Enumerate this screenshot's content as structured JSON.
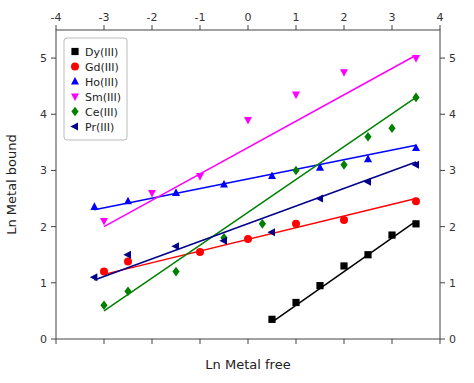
{
  "chart_data": {
    "type": "scatter",
    "x_label": "Ln Metal free",
    "y_label": "Ln Metal bound",
    "xlim": [
      -4,
      4
    ],
    "ylim": [
      0,
      5.5
    ],
    "xticks": [
      -4,
      -3,
      -2,
      -1,
      0,
      1,
      2,
      3,
      4
    ],
    "yticks": [
      0,
      1,
      2,
      3,
      4,
      5
    ],
    "y2lim": [
      0,
      5.5
    ],
    "y2ticks": [
      0,
      1,
      2,
      3,
      4,
      5
    ],
    "legend": "upper left",
    "grid": false,
    "series": [
      {
        "name": "Dy(III)",
        "color": "black",
        "marker": "square",
        "x": [
          0.5,
          1.0,
          1.5,
          2.0,
          2.5,
          3.0,
          3.5
        ],
        "values": [
          0.35,
          0.65,
          0.95,
          1.3,
          1.5,
          1.85,
          2.05
        ],
        "line_x": [
          0.5,
          3.5
        ],
        "line_y": [
          0.3,
          2.1
        ]
      },
      {
        "name": "Gd(III)",
        "color": "red",
        "marker": "circle",
        "x": [
          -3.0,
          -2.5,
          -1.0,
          0.0,
          1.0,
          2.0,
          3.5
        ],
        "values": [
          1.2,
          1.38,
          1.55,
          1.78,
          2.05,
          2.12,
          2.45
        ],
        "line_x": [
          -3.0,
          3.5
        ],
        "line_y": [
          1.15,
          2.5
        ]
      },
      {
        "name": "Ho(III)",
        "color": "blue",
        "marker": "triangle-up",
        "x": [
          -3.2,
          -2.5,
          -1.5,
          -0.5,
          0.5,
          1.5,
          2.5,
          3.5
        ],
        "values": [
          2.35,
          2.45,
          2.6,
          2.75,
          2.9,
          3.05,
          3.2,
          3.4
        ],
        "line_x": [
          -3.2,
          3.5
        ],
        "line_y": [
          2.3,
          3.45
        ]
      },
      {
        "name": "Sm(III)",
        "color": "magenta",
        "marker": "triangle-down",
        "x": [
          -3.0,
          -2.0,
          -1.0,
          0.0,
          1.0,
          2.0,
          3.5
        ],
        "values": [
          2.1,
          2.6,
          2.9,
          3.9,
          4.35,
          4.75,
          5.0
        ],
        "line_x": [
          -3.0,
          3.5
        ],
        "line_y": [
          2.0,
          5.05
        ]
      },
      {
        "name": "Ce(III)",
        "color": "green",
        "marker": "diamond",
        "x": [
          -3.0,
          -2.5,
          -1.5,
          -0.5,
          0.3,
          1.0,
          2.0,
          2.5,
          3.0,
          3.5
        ],
        "values": [
          0.6,
          0.85,
          1.2,
          1.8,
          2.05,
          3.0,
          3.1,
          3.6,
          3.75,
          4.3
        ],
        "line_x": [
          -3.0,
          3.5
        ],
        "line_y": [
          0.5,
          4.3
        ]
      },
      {
        "name": "Pr(III)",
        "color": "#00008B",
        "marker": "triangle-left",
        "x": [
          -3.2,
          -2.5,
          -1.5,
          -0.5,
          0.5,
          1.5,
          2.5,
          3.5
        ],
        "values": [
          1.1,
          1.5,
          1.65,
          1.75,
          1.9,
          2.5,
          2.8,
          3.1
        ],
        "line_x": [
          -3.2,
          3.5
        ],
        "line_y": [
          1.05,
          3.15
        ]
      }
    ]
  }
}
